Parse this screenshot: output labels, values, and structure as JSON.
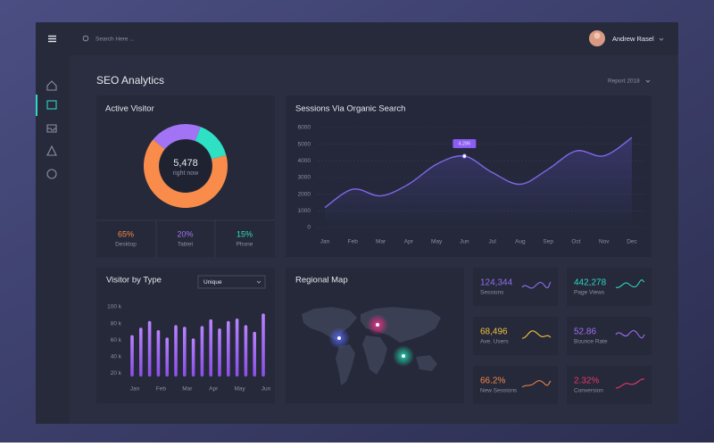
{
  "header": {
    "search_placeholder": "Search Here ...",
    "user_name": "Andrew Rasel"
  },
  "page": {
    "title": "SEO Analytics",
    "report": "Report 2018"
  },
  "chart_data": [
    {
      "type": "pie",
      "title": "Active Visitor",
      "center_value": "5,478",
      "center_label": "right now",
      "categories": [
        "Desktop",
        "Tablet",
        "Phone"
      ],
      "values": [
        65,
        20,
        15
      ],
      "value_labels": [
        "65%",
        "20%",
        "15%"
      ],
      "colors": [
        "#f98c4a",
        "#a274f5",
        "#2ee0c4"
      ]
    },
    {
      "type": "line",
      "title": "Sessions Via Organic Search",
      "categories": [
        "Jan",
        "Feb",
        "Mar",
        "Apr",
        "May",
        "Jun",
        "Jul",
        "Aug",
        "Sep",
        "Oct",
        "Nov",
        "Dec"
      ],
      "values": [
        1200,
        2300,
        1900,
        2600,
        3800,
        4286,
        3300,
        2600,
        3500,
        4600,
        4300,
        5400
      ],
      "color": "#8068e8",
      "ylim": [
        0,
        6000
      ],
      "yticks": [
        0,
        1000,
        2000,
        3000,
        4000,
        5000,
        6000
      ],
      "grid": true,
      "annotation": {
        "x": "Jun",
        "label": "4,286"
      }
    },
    {
      "type": "bar",
      "title": "Visitor by Type",
      "filter": "Unique",
      "categories": [
        "Jan",
        null,
        null,
        "Feb",
        null,
        null,
        "Mar",
        null,
        null,
        "Apr",
        null,
        null,
        "May",
        null,
        null,
        "Jun"
      ],
      "values": [
        66,
        75,
        83,
        72,
        63,
        78,
        76,
        62,
        77,
        85,
        74,
        83,
        86,
        78,
        70,
        92
      ],
      "color": "#a66cf7",
      "ylim": [
        16,
        100
      ],
      "yticks": [
        {
          "value": 20,
          "label": "20 k"
        },
        {
          "value": 40,
          "label": "40 k"
        },
        {
          "value": 60,
          "label": "60 k"
        },
        {
          "value": 80,
          "label": "80 k"
        },
        {
          "value": 100,
          "label": "100 k"
        }
      ]
    }
  ],
  "map": {
    "title": "Regional Map"
  },
  "stats": [
    {
      "value": "124,344",
      "label": "Sessions",
      "color": "#8f6ff2"
    },
    {
      "value": "442,278",
      "label": "Page Views",
      "color": "#2fd6c3"
    },
    {
      "value": "68,496",
      "label": "Ave. Users",
      "color": "#f3c13f"
    },
    {
      "value": "52.86",
      "label": "Bounce Rate",
      "color": "#a071f5"
    },
    {
      "value": "66.2%",
      "label": "New Sessions",
      "color": "#f5874a"
    },
    {
      "value": "2.32%",
      "label": "Conversion",
      "color": "#e8366f"
    }
  ]
}
